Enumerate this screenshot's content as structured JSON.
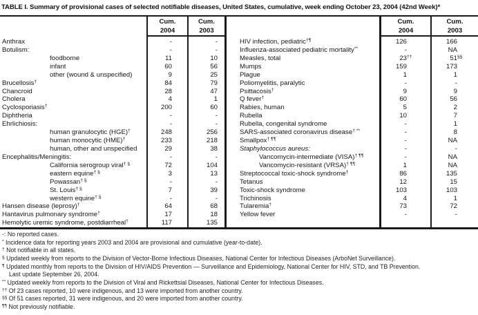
{
  "title": "TABLE I. Summary of provisional cases of selected notifiable diseases, United States, cumulative, week ending October 23, 2004 (42nd Week)*",
  "colors": {
    "ink": "#1a1a1a",
    "background": "#ffffff"
  },
  "headers": {
    "cum": "Cum.",
    "y2004": "2004",
    "y2003": "2003"
  },
  "left_table": {
    "rows": [
      {
        "label": "Anthrax",
        "sup": "",
        "indent": 0,
        "italic": false,
        "v1": "-",
        "v1sup": "",
        "v2": "-",
        "v2sup": ""
      },
      {
        "label": "Botulism:",
        "sup": "",
        "indent": 0,
        "italic": false,
        "v1": "-",
        "v1sup": "",
        "v2": "-",
        "v2sup": ""
      },
      {
        "label": "foodborne",
        "sup": "",
        "indent": 1,
        "italic": false,
        "v1": "11",
        "v1sup": "",
        "v2": "10",
        "v2sup": ""
      },
      {
        "label": "infant",
        "sup": "",
        "indent": 1,
        "italic": false,
        "v1": "60",
        "v1sup": "",
        "v2": "56",
        "v2sup": ""
      },
      {
        "label": "other (wound & unspecified)",
        "sup": "",
        "indent": 1,
        "italic": false,
        "v1": "9",
        "v1sup": "",
        "v2": "25",
        "v2sup": ""
      },
      {
        "label": "Brucellosis",
        "sup": "†",
        "indent": 0,
        "italic": false,
        "v1": "84",
        "v1sup": "",
        "v2": "79",
        "v2sup": ""
      },
      {
        "label": "Chancroid",
        "sup": "",
        "indent": 0,
        "italic": false,
        "v1": "28",
        "v1sup": "",
        "v2": "47",
        "v2sup": ""
      },
      {
        "label": "Cholera",
        "sup": "",
        "indent": 0,
        "italic": false,
        "v1": "4",
        "v1sup": "",
        "v2": "1",
        "v2sup": ""
      },
      {
        "label": "Cyclosporiasis",
        "sup": "†",
        "indent": 0,
        "italic": false,
        "v1": "200",
        "v1sup": "",
        "v2": "60",
        "v2sup": ""
      },
      {
        "label": "Diphtheria",
        "sup": "",
        "indent": 0,
        "italic": false,
        "v1": "-",
        "v1sup": "",
        "v2": "-",
        "v2sup": ""
      },
      {
        "label": "Ehrlichiosis:",
        "sup": "",
        "indent": 0,
        "italic": false,
        "v1": "-",
        "v1sup": "",
        "v2": "-",
        "v2sup": ""
      },
      {
        "label": "human granulocytic (HGE)",
        "sup": "†",
        "indent": 1,
        "italic": false,
        "v1": "248",
        "v1sup": "",
        "v2": "256",
        "v2sup": ""
      },
      {
        "label": "human monocytic (HME)",
        "sup": "†",
        "indent": 1,
        "italic": false,
        "v1": "233",
        "v1sup": "",
        "v2": "218",
        "v2sup": ""
      },
      {
        "label": "human, other and unspecified",
        "sup": "",
        "indent": 1,
        "italic": false,
        "v1": "29",
        "v1sup": "",
        "v2": "38",
        "v2sup": ""
      },
      {
        "label": "Encephalitis/Meningitis:",
        "sup": "",
        "indent": 0,
        "italic": false,
        "v1": "-",
        "v1sup": "",
        "v2": "-",
        "v2sup": ""
      },
      {
        "label": "California serogroup viral",
        "sup": "† §",
        "indent": 1,
        "italic": false,
        "v1": "72",
        "v1sup": "",
        "v2": "104",
        "v2sup": ""
      },
      {
        "label": "eastern equine",
        "sup": "† §",
        "indent": 1,
        "italic": false,
        "v1": "3",
        "v1sup": "",
        "v2": "13",
        "v2sup": ""
      },
      {
        "label": "Powassan",
        "sup": "† §",
        "indent": 1,
        "italic": false,
        "v1": "-",
        "v1sup": "",
        "v2": "-",
        "v2sup": ""
      },
      {
        "label": "St. Louis",
        "sup": "† §",
        "indent": 1,
        "italic": false,
        "v1": "7",
        "v1sup": "",
        "v2": "39",
        "v2sup": ""
      },
      {
        "label": "western equine",
        "sup": "† §",
        "indent": 1,
        "italic": false,
        "v1": "-",
        "v1sup": "",
        "v2": "-",
        "v2sup": ""
      },
      {
        "label": "Hansen disease (leprosy)",
        "sup": "†",
        "indent": 0,
        "italic": false,
        "v1": "64",
        "v1sup": "",
        "v2": "68",
        "v2sup": ""
      },
      {
        "label": "Hantavirus pulmonary syndrome",
        "sup": "†",
        "indent": 0,
        "italic": false,
        "v1": "17",
        "v1sup": "",
        "v2": "18",
        "v2sup": ""
      },
      {
        "label": "Hemolytic uremic syndrome, postdiarrheal",
        "sup": "†",
        "indent": 0,
        "italic": false,
        "v1": "117",
        "v1sup": "",
        "v2": "135",
        "v2sup": ""
      }
    ]
  },
  "right_table": {
    "rows": [
      {
        "label": "HIV infection, pediatric",
        "sup": "†¶",
        "indent": 0,
        "italic": false,
        "v1": "126",
        "v1sup": "",
        "v2": "166",
        "v2sup": ""
      },
      {
        "label": "Influenza-associated pediatric mortality",
        "sup": "**",
        "indent": 0,
        "italic": false,
        "v1": "-",
        "v1sup": "",
        "v2": "NA",
        "v2sup": ""
      },
      {
        "label": "Measles, total",
        "sup": "",
        "indent": 0,
        "italic": false,
        "v1": "23",
        "v1sup": "††",
        "v2": "51",
        "v2sup": "§§"
      },
      {
        "label": "Mumps",
        "sup": "",
        "indent": 0,
        "italic": false,
        "v1": "159",
        "v1sup": "",
        "v2": "173",
        "v2sup": ""
      },
      {
        "label": "Plague",
        "sup": "",
        "indent": 0,
        "italic": false,
        "v1": "1",
        "v1sup": "",
        "v2": "1",
        "v2sup": ""
      },
      {
        "label": "Poliomyelitis, paralytic",
        "sup": "",
        "indent": 0,
        "italic": false,
        "v1": "-",
        "v1sup": "",
        "v2": "-",
        "v2sup": ""
      },
      {
        "label": "Psittacosis",
        "sup": "†",
        "indent": 0,
        "italic": false,
        "v1": "9",
        "v1sup": "",
        "v2": "9",
        "v2sup": ""
      },
      {
        "label": "Q fever",
        "sup": "†",
        "indent": 0,
        "italic": false,
        "v1": "60",
        "v1sup": "",
        "v2": "56",
        "v2sup": ""
      },
      {
        "label": "Rabies, human",
        "sup": "",
        "indent": 0,
        "italic": false,
        "v1": "5",
        "v1sup": "",
        "v2": "2",
        "v2sup": ""
      },
      {
        "label": "Rubella",
        "sup": "",
        "indent": 0,
        "italic": false,
        "v1": "10",
        "v1sup": "",
        "v2": "7",
        "v2sup": ""
      },
      {
        "label": "Rubella, congenital syndrome",
        "sup": "",
        "indent": 0,
        "italic": false,
        "v1": "-",
        "v1sup": "",
        "v2": "1",
        "v2sup": ""
      },
      {
        "label": "SARS-associated coronavirus disease",
        "sup": "† **",
        "indent": 0,
        "italic": false,
        "v1": "-",
        "v1sup": "",
        "v2": "8",
        "v2sup": ""
      },
      {
        "label": "Smallpox",
        "sup": "† ¶¶",
        "indent": 0,
        "italic": false,
        "v1": "-",
        "v1sup": "",
        "v2": "NA",
        "v2sup": ""
      },
      {
        "label": "Staphylococcus aureus:",
        "sup": "",
        "indent": 0,
        "italic": true,
        "v1": "-",
        "v1sup": "",
        "v2": "-",
        "v2sup": ""
      },
      {
        "label": "Vancomycin-intermediate (VISA)",
        "sup": "† ¶¶",
        "indent": 1,
        "italic": false,
        "v1": "-",
        "v1sup": "",
        "v2": "NA",
        "v2sup": ""
      },
      {
        "label": "Vancomycin-resistant (VRSA)",
        "sup": "† ¶¶",
        "indent": 1,
        "italic": false,
        "v1": "1",
        "v1sup": "",
        "v2": "NA",
        "v2sup": ""
      },
      {
        "label": "Streptococcal toxic-shock syndrome",
        "sup": "†",
        "indent": 0,
        "italic": false,
        "v1": "86",
        "v1sup": "",
        "v2": "135",
        "v2sup": ""
      },
      {
        "label": "Tetanus",
        "sup": "",
        "indent": 0,
        "italic": false,
        "v1": "12",
        "v1sup": "",
        "v2": "15",
        "v2sup": ""
      },
      {
        "label": "Toxic-shock syndrome",
        "sup": "",
        "indent": 0,
        "italic": false,
        "v1": "103",
        "v1sup": "",
        "v2": "103",
        "v2sup": ""
      },
      {
        "label": "Trichinosis",
        "sup": "",
        "indent": 0,
        "italic": false,
        "v1": "4",
        "v1sup": "",
        "v2": "1",
        "v2sup": ""
      },
      {
        "label": "Tularemia",
        "sup": "†",
        "indent": 0,
        "italic": false,
        "v1": "73",
        "v1sup": "",
        "v2": "72",
        "v2sup": ""
      },
      {
        "label": "Yellow fever",
        "sup": "",
        "indent": 0,
        "italic": false,
        "v1": "-",
        "v1sup": "",
        "v2": "-",
        "v2sup": ""
      }
    ]
  },
  "footnotes": [
    {
      "marker": "-:",
      "sup": false,
      "indent": false,
      "text": "No reported cases."
    },
    {
      "marker": "*",
      "sup": true,
      "indent": false,
      "text": "Incidence data for reporting years 2003 and 2004 are provisional and cumulative (year-to-date)."
    },
    {
      "marker": "†",
      "sup": true,
      "indent": false,
      "text": "Not notifiable in all states."
    },
    {
      "marker": "§",
      "sup": true,
      "indent": false,
      "text": "Updated weekly from reports to the Division of Vector-Borne Infectious Diseases, National Center for Infectious Diseases (ArboNet Surveillance)."
    },
    {
      "marker": "¶",
      "sup": true,
      "indent": false,
      "text": "Updated monthly from reports to the Division of HIV/AIDS Prevention — Surveillance and Epidemiology, National Center for HIV, STD, and TB Prevention."
    },
    {
      "marker": "",
      "sup": false,
      "indent": true,
      "text": "Last update September 26, 2004."
    },
    {
      "marker": "**",
      "sup": true,
      "indent": false,
      "text": "Updated weekly from reports to the Division of Viral and Rickettsial Diseases, National Center for Infectious Diseases."
    },
    {
      "marker": "††",
      "sup": true,
      "indent": false,
      "text": "Of 23 cases reported, 10 were indigenous, and 13 were imported from another country."
    },
    {
      "marker": "§§",
      "sup": true,
      "indent": false,
      "text": "Of 51 cases reported, 31 were indigenous, and 20 were imported from another country."
    },
    {
      "marker": "¶¶",
      "sup": true,
      "indent": false,
      "text": "Not previously notifiable."
    }
  ]
}
